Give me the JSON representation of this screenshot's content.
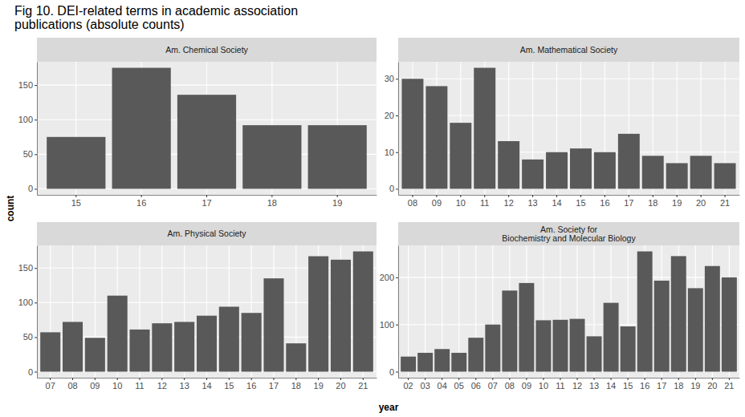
{
  "title": [
    "Fig 10. DEI-related terms in academic association",
    "publications (absolute counts)"
  ],
  "x_label": "year",
  "y_label": "count",
  "chart_data": [
    {
      "type": "bar",
      "title": "Am. Chemical Society",
      "categories": [
        "15",
        "16",
        "17",
        "18",
        "19"
      ],
      "values": [
        75,
        175,
        136,
        92,
        92
      ],
      "color": "#595959",
      "ylim": [
        -8.75,
        183.75
      ],
      "yticks": [
        0,
        50,
        100,
        150
      ],
      "grid": true
    },
    {
      "type": "bar",
      "title": "Am. Mathematical Society",
      "categories": [
        "08",
        "09",
        "10",
        "11",
        "12",
        "13",
        "14",
        "15",
        "16",
        "17",
        "18",
        "19",
        "20",
        "21"
      ],
      "values": [
        30,
        28,
        18,
        33,
        13,
        8,
        10,
        11,
        10,
        15,
        9,
        7,
        9,
        7
      ],
      "color": "#595959",
      "ylim": [
        -1.65,
        34.65
      ],
      "yticks": [
        0,
        10,
        20,
        30
      ],
      "grid": true
    },
    {
      "type": "bar",
      "title": "Am. Physical Society",
      "categories": [
        "07",
        "08",
        "09",
        "10",
        "11",
        "12",
        "13",
        "14",
        "15",
        "16",
        "17",
        "18",
        "19",
        "20",
        "21"
      ],
      "values": [
        57,
        72,
        49,
        110,
        61,
        70,
        72,
        81,
        94,
        85,
        135,
        41,
        167,
        162,
        174
      ],
      "color": "#595959",
      "ylim": [
        -8.7,
        182.7
      ],
      "yticks": [
        0,
        50,
        100,
        150
      ],
      "grid": true
    },
    {
      "type": "bar",
      "title": [
        "Am. Society for",
        "Biochemistry and Molecular Biology"
      ],
      "categories": [
        "02",
        "03",
        "04",
        "05",
        "06",
        "07",
        "08",
        "09",
        "10",
        "11",
        "12",
        "13",
        "14",
        "15",
        "16",
        "17",
        "18",
        "19",
        "20",
        "21"
      ],
      "values": [
        32,
        40,
        48,
        40,
        72,
        100,
        172,
        188,
        109,
        110,
        112,
        75,
        146,
        96,
        255,
        193,
        245,
        177,
        224,
        200
      ],
      "color": "#595959",
      "ylim": [
        -12.75,
        267.75
      ],
      "yticks": [
        0,
        100,
        200
      ],
      "grid": true
    }
  ]
}
